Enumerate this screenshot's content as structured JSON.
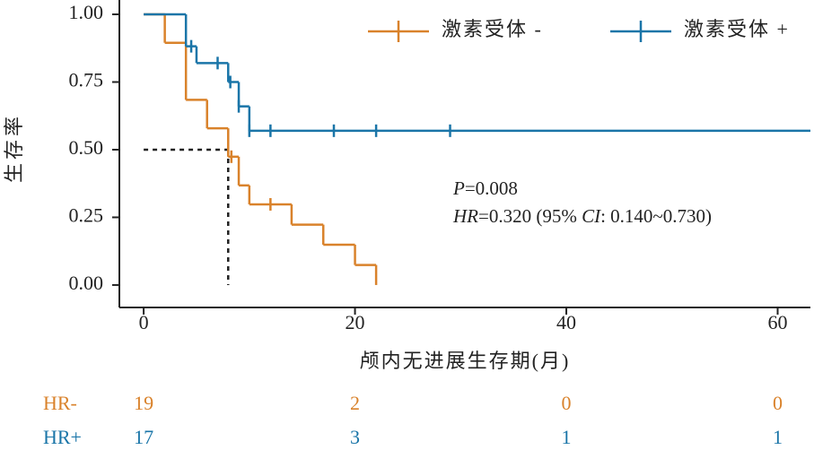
{
  "chart_data": {
    "type": "kaplan-meier",
    "ylabel": "生存率",
    "xlabel": "颅内无进展生存期(月)",
    "xlim": [
      -2.3,
      63.1
    ],
    "ylim": [
      -0.083,
      1.053
    ],
    "xticks": [
      0,
      20,
      40,
      60
    ],
    "yticks": [
      {
        "value": 0,
        "label": "0.00"
      },
      {
        "value": 0.25,
        "label": "0.25"
      },
      {
        "value": 0.5,
        "label": "0.50"
      },
      {
        "value": 0.75,
        "label": "0.75"
      },
      {
        "value": 1,
        "label": "1.00"
      }
    ],
    "legend": "upper right",
    "series": [
      {
        "name": "激素受体 -",
        "color": "#d9822b",
        "x": [
          0,
          2,
          4,
          6,
          8,
          9,
          10,
          14,
          17,
          20,
          22
        ],
        "values": [
          1,
          0.895,
          0.684,
          0.579,
          0.474,
          0.368,
          0.298,
          0.223,
          0.149,
          0.074,
          0
        ],
        "censor": {
          "x": [
            8.3,
            12
          ],
          "y": [
            0.474,
            0.298
          ]
        }
      },
      {
        "name": "激素受体 +",
        "color": "#1a75a8",
        "x": [
          0,
          4,
          5,
          8,
          9,
          10
        ],
        "values": [
          1,
          0.882,
          0.82,
          0.75,
          0.66,
          0.57
        ],
        "censor": {
          "x": [
            4.5,
            7,
            8.2,
            9,
            10,
            12,
            18,
            22,
            29
          ],
          "y": [
            0.882,
            0.82,
            0.75,
            0.66,
            0.57,
            0.57,
            0.57,
            0.57,
            0.57
          ]
        }
      }
    ],
    "median": {
      "x": 8,
      "y": 0.5
    },
    "annotations": [
      [
        "P",
        "=0.008"
      ],
      [
        "HR",
        "=0.320 (95% ",
        "CI",
        ": 0.140~0.730)"
      ]
    ],
    "risk_table": [
      {
        "name": "HR-",
        "color": "#d9822b",
        "counts": [
          19,
          2,
          0,
          0
        ]
      },
      {
        "name": "HR+",
        "color": "#1a75a8",
        "counts": [
          17,
          3,
          1,
          1
        ]
      }
    ]
  }
}
